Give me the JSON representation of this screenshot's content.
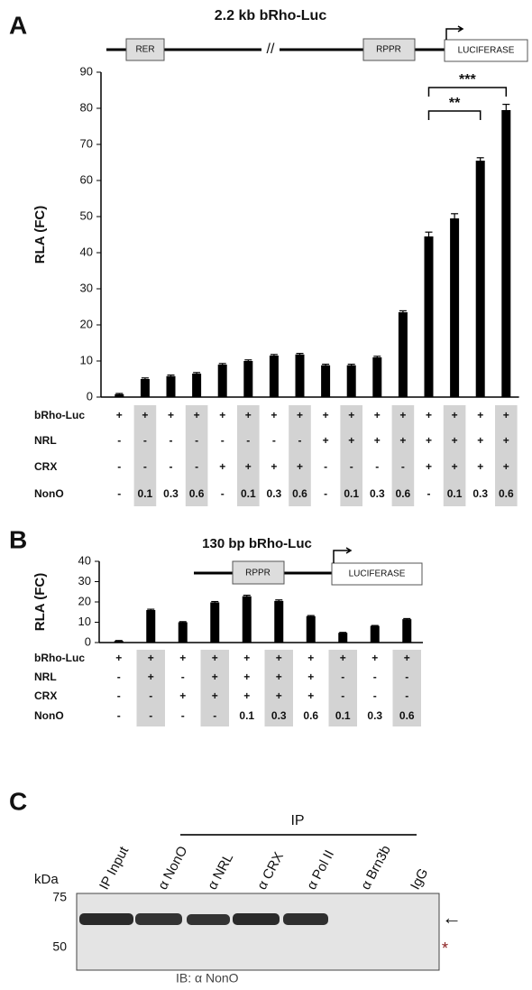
{
  "panels": [
    "A",
    "B",
    "C"
  ],
  "chart_data": [
    {
      "type": "bar",
      "title": "2.2 kb bRho-Luc",
      "ylabel": "RLA (FC)",
      "schematic": [
        "RER",
        "//",
        "RPPR",
        "LUCIFERASE"
      ],
      "annotations": [
        "**",
        "***"
      ],
      "values": [
        0.8,
        5,
        5.8,
        6.5,
        9,
        10,
        11.5,
        11.8,
        8.8,
        8.8,
        11,
        23.5,
        44.5,
        49.5,
        65.5,
        79.5
      ],
      "errors": [
        0.2,
        0.3,
        0.3,
        0.3,
        0.3,
        0.3,
        0.3,
        0.3,
        0.3,
        0.3,
        0.3,
        0.4,
        1.2,
        1.3,
        0.8,
        1.6
      ],
      "color": "#000000",
      "ylim": [
        0,
        90
      ],
      "yticks": [
        0,
        10,
        20,
        30,
        40,
        50,
        60,
        70,
        80,
        90
      ],
      "table": [
        {
          "label": "bRho-Luc",
          "cells": [
            "+",
            "+",
            "+",
            "+",
            "+",
            "+",
            "+",
            "+",
            "+",
            "+",
            "+",
            "+",
            "+",
            "+",
            "+",
            "+"
          ]
        },
        {
          "label": "NRL",
          "cells": [
            "-",
            "-",
            "-",
            "-",
            "-",
            "-",
            "-",
            "-",
            "+",
            "+",
            "+",
            "+",
            "+",
            "+",
            "+",
            "+"
          ]
        },
        {
          "label": "CRX",
          "cells": [
            "-",
            "-",
            "-",
            "-",
            "+",
            "+",
            "+",
            "+",
            "-",
            "-",
            "-",
            "-",
            "+",
            "+",
            "+",
            "+"
          ]
        },
        {
          "label": "NonO",
          "cells": [
            "-",
            "0.1",
            "0.3",
            "0.6",
            "-",
            "0.1",
            "0.3",
            "0.6",
            "-",
            "0.1",
            "0.3",
            "0.6",
            "-",
            "0.1",
            "0.3",
            "0.6"
          ]
        }
      ]
    },
    {
      "type": "bar",
      "title": "130 bp bRho-Luc",
      "ylabel": "RLA (FC)",
      "schematic": [
        "RPPR",
        "LUCIFERASE"
      ],
      "values": [
        0.8,
        16,
        10,
        19.8,
        22.8,
        20.5,
        13,
        4.8,
        8.2,
        11.5
      ],
      "errors": [
        0.2,
        0.4,
        0.3,
        0.4,
        0.5,
        0.5,
        0.3,
        0.2,
        0.2,
        0.3
      ],
      "color": "#000000",
      "ylim": [
        0,
        40
      ],
      "yticks": [
        0,
        10,
        20,
        30,
        40
      ],
      "table": [
        {
          "label": "bRho-Luc",
          "cells": [
            "+",
            "+",
            "+",
            "+",
            "+",
            "+",
            "+",
            "+",
            "+",
            "+"
          ]
        },
        {
          "label": "NRL",
          "cells": [
            "-",
            "+",
            "-",
            "+",
            "+",
            "+",
            "+",
            "-",
            "-",
            "-"
          ]
        },
        {
          "label": "CRX",
          "cells": [
            "-",
            "-",
            "+",
            "+",
            "+",
            "+",
            "+",
            "-",
            "-",
            "-"
          ]
        },
        {
          "label": "NonO",
          "cells": [
            "-",
            "-",
            "-",
            "-",
            "0.1",
            "0.3",
            "0.6",
            "0.1",
            "0.3",
            "0.6"
          ]
        }
      ]
    }
  ],
  "blot": {
    "group": "IP",
    "lanes": [
      "IP Input",
      "α NonO",
      "α NRL",
      "α CRX",
      "α Pol II",
      "α Brn3b",
      "IgG"
    ],
    "unit": "kDa",
    "markers": [
      "75",
      "50"
    ],
    "caption": "IB: α NonO",
    "arrow": "←",
    "asterisk": "*"
  }
}
